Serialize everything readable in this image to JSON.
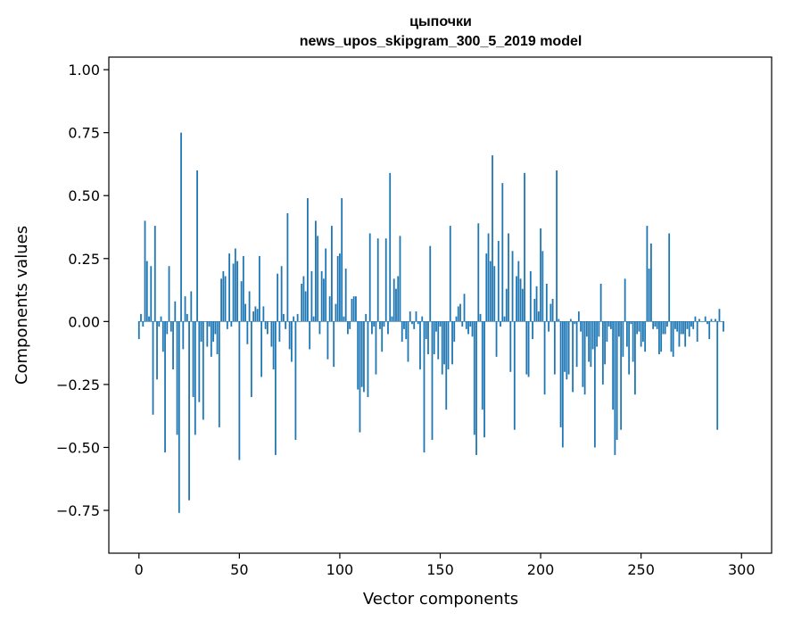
{
  "chart_data": {
    "type": "bar",
    "title_line1": "цыпочки",
    "title_line2": "news_upos_skipgram_300_5_2019 model",
    "xlabel": "Vector components",
    "ylabel": "Components values",
    "xlim": [
      -15,
      315
    ],
    "ylim": [
      -0.92,
      1.05
    ],
    "x_ticks": [
      {
        "value": 0,
        "label": "0"
      },
      {
        "value": 50,
        "label": "50"
      },
      {
        "value": 100,
        "label": "100"
      },
      {
        "value": 150,
        "label": "150"
      },
      {
        "value": 200,
        "label": "200"
      },
      {
        "value": 250,
        "label": "250"
      },
      {
        "value": 300,
        "label": "300"
      }
    ],
    "y_ticks": [
      {
        "value": 1.0,
        "label": "1.00"
      },
      {
        "value": 0.75,
        "label": "0.75"
      },
      {
        "value": 0.5,
        "label": "0.50"
      },
      {
        "value": 0.25,
        "label": "0.25"
      },
      {
        "value": 0.0,
        "label": "0.00"
      },
      {
        "value": -0.25,
        "label": "−0.25"
      },
      {
        "value": -0.5,
        "label": "−0.50"
      },
      {
        "value": -0.75,
        "label": "−0.75"
      }
    ],
    "bar_color": "#1f77b4",
    "values": [
      -0.07,
      0.03,
      -0.02,
      0.4,
      0.24,
      0.02,
      0.22,
      -0.37,
      0.38,
      -0.23,
      -0.02,
      0.02,
      -0.12,
      -0.52,
      -0.05,
      0.22,
      -0.04,
      -0.19,
      0.08,
      -0.45,
      -0.76,
      0.75,
      -0.11,
      0.1,
      0.03,
      -0.71,
      0.12,
      -0.3,
      -0.45,
      0.6,
      -0.32,
      -0.08,
      -0.39,
      0.0,
      -0.1,
      -0.02,
      -0.14,
      -0.08,
      -0.05,
      -0.13,
      -0.42,
      0.17,
      0.2,
      0.18,
      -0.03,
      0.27,
      -0.02,
      0.23,
      0.29,
      0.24,
      -0.55,
      0.16,
      0.26,
      0.07,
      -0.09,
      0.12,
      -0.3,
      0.04,
      0.06,
      0.05,
      0.26,
      -0.22,
      0.06,
      -0.03,
      -0.05,
      0.0,
      -0.1,
      -0.19,
      -0.53,
      0.19,
      -0.08,
      0.22,
      0.03,
      -0.03,
      0.43,
      -0.11,
      -0.16,
      0.02,
      -0.47,
      0.03,
      0.0,
      0.15,
      0.18,
      0.12,
      0.49,
      -0.11,
      0.2,
      0.02,
      0.4,
      0.34,
      -0.05,
      0.2,
      0.17,
      0.29,
      -0.15,
      0.1,
      0.38,
      -0.18,
      0.07,
      0.26,
      0.27,
      0.49,
      0.02,
      0.21,
      -0.05,
      -0.03,
      0.09,
      0.1,
      0.1,
      -0.27,
      -0.44,
      -0.26,
      -0.28,
      0.03,
      -0.3,
      0.35,
      -0.05,
      -0.02,
      -0.21,
      0.33,
      -0.03,
      -0.12,
      -0.02,
      0.33,
      -0.05,
      0.59,
      0.02,
      0.17,
      0.13,
      0.18,
      0.34,
      -0.08,
      -0.03,
      -0.07,
      -0.16,
      0.04,
      -0.01,
      -0.03,
      0.04,
      -0.01,
      -0.19,
      0.02,
      -0.52,
      -0.07,
      -0.13,
      0.3,
      -0.47,
      -0.13,
      -0.04,
      -0.15,
      -0.02,
      -0.21,
      -0.17,
      -0.35,
      -0.19,
      0.38,
      -0.17,
      -0.08,
      0.02,
      0.06,
      0.07,
      -0.02,
      0.11,
      -0.03,
      -0.05,
      -0.02,
      -0.06,
      -0.45,
      -0.53,
      0.39,
      0.03,
      -0.35,
      -0.46,
      0.27,
      0.35,
      0.24,
      0.66,
      0.22,
      -0.14,
      0.32,
      -0.02,
      0.55,
      0.02,
      0.13,
      0.35,
      -0.2,
      0.28,
      -0.43,
      0.18,
      0.24,
      0.17,
      0.13,
      0.59,
      -0.21,
      -0.22,
      0.2,
      -0.07,
      0.09,
      0.14,
      0.04,
      0.37,
      0.28,
      -0.29,
      0.15,
      -0.04,
      0.07,
      0.09,
      -0.21,
      0.6,
      0.01,
      -0.42,
      -0.5,
      -0.2,
      -0.23,
      -0.21,
      0.01,
      -0.28,
      -0.01,
      -0.18,
      0.04,
      -0.04,
      -0.26,
      -0.29,
      -0.06,
      -0.16,
      -0.18,
      -0.11,
      -0.5,
      -0.1,
      -0.06,
      0.15,
      -0.25,
      -0.17,
      -0.08,
      -0.02,
      -0.03,
      -0.35,
      -0.53,
      -0.47,
      -0.06,
      -0.43,
      -0.14,
      0.17,
      -0.1,
      -0.21,
      -0.01,
      -0.16,
      -0.29,
      -0.05,
      -0.04,
      -0.1,
      -0.08,
      -0.12,
      0.38,
      0.21,
      0.31,
      -0.03,
      -0.02,
      -0.03,
      -0.13,
      -0.12,
      -0.05,
      -0.05,
      -0.02,
      0.35,
      -0.12,
      -0.14,
      -0.03,
      -0.04,
      -0.1,
      -0.05,
      -0.05,
      -0.1,
      -0.03,
      -0.06,
      -0.02,
      -0.03,
      0.02,
      -0.08,
      0.01,
      0.0,
      0.0,
      0.02,
      -0.01,
      -0.07,
      0.01,
      0.0,
      0.01,
      -0.43,
      0.05,
      0.0,
      -0.04
    ]
  }
}
